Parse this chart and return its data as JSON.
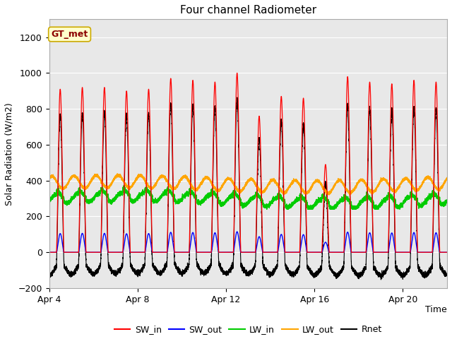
{
  "title": "Four channel Radiometer",
  "xlabel": "Time",
  "ylabel": "Solar Radiation (W/m2)",
  "ylim": [
    -200,
    1300
  ],
  "yticks": [
    -200,
    0,
    200,
    400,
    600,
    800,
    1000,
    1200
  ],
  "xlim_days": [
    0,
    18
  ],
  "x_tick_labels": [
    "Apr 4",
    "Apr 8",
    "Apr 12",
    "Apr 16",
    "Apr 20"
  ],
  "x_tick_positions": [
    0,
    4,
    8,
    12,
    16
  ],
  "colors": {
    "SW_in": "#FF0000",
    "SW_out": "#0000FF",
    "LW_in": "#00CC00",
    "LW_out": "#FFA500",
    "Rnet": "#000000"
  },
  "legend_label": "GT_met",
  "legend_box_color": "#FFFFCC",
  "legend_box_edge": "#CCAA00",
  "background_color": "#FFFFFF",
  "plot_bg_color": "#E8E8E8",
  "title_fontsize": 11,
  "axis_fontsize": 9,
  "tick_fontsize": 9
}
